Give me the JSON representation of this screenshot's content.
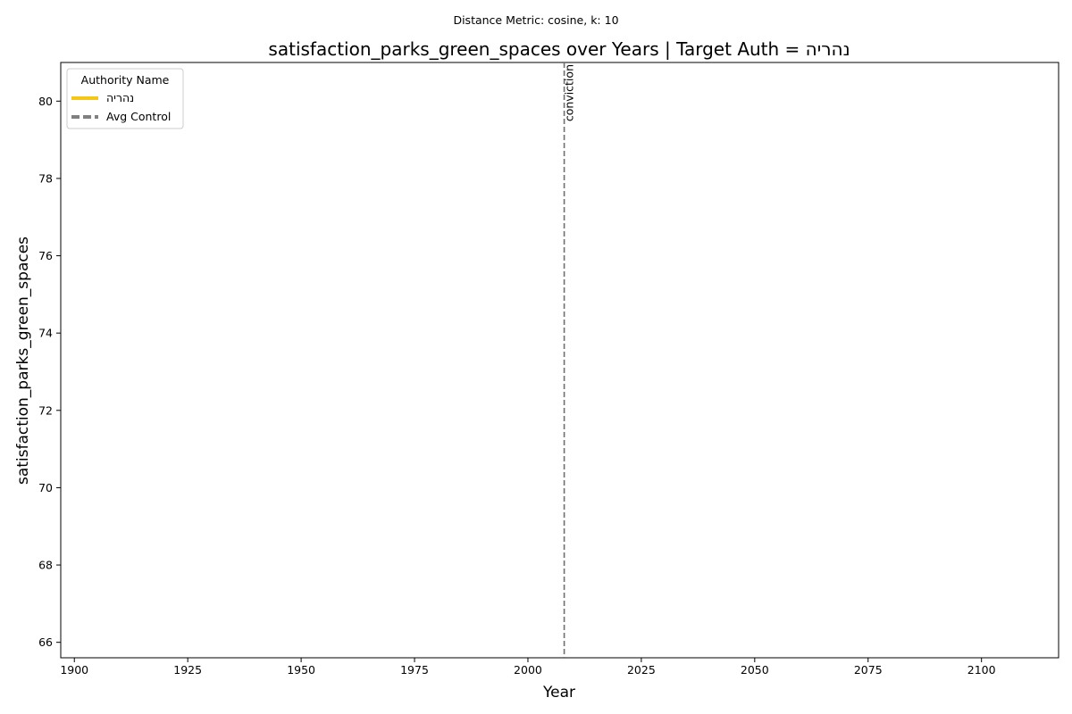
{
  "chart_data": {
    "type": "line",
    "suptitle": "Distance Metric: cosine, k: 10",
    "title": "satisfaction_parks_green_spaces over Years | Target Auth = נהריה",
    "xlabel": "Year",
    "ylabel": "satisfaction_parks_green_spaces",
    "xlim": [
      1897,
      2117
    ],
    "ylim": [
      65.6,
      81.0
    ],
    "xticks": [
      1900,
      1925,
      1950,
      1975,
      2000,
      2025,
      2050,
      2075,
      2100
    ],
    "yticks": [
      66,
      68,
      70,
      72,
      74,
      76,
      78,
      80
    ],
    "grid": false,
    "legend": {
      "title": "Authority Name",
      "placement": "top-left",
      "entries": [
        {
          "name": "נהריה",
          "color": "#f5c518",
          "style": "solid"
        },
        {
          "name": "Avg Control",
          "color": "#808080",
          "style": "dashed"
        }
      ]
    },
    "series": [
      {
        "name": "נהריה",
        "color": "#f5c518",
        "x": [],
        "y": []
      },
      {
        "name": "Avg Control",
        "color": "#808080",
        "x": [],
        "y": []
      }
    ],
    "annotations": [
      {
        "type": "vline",
        "x": 2008,
        "label": "conviction",
        "color": "#707070"
      }
    ]
  }
}
